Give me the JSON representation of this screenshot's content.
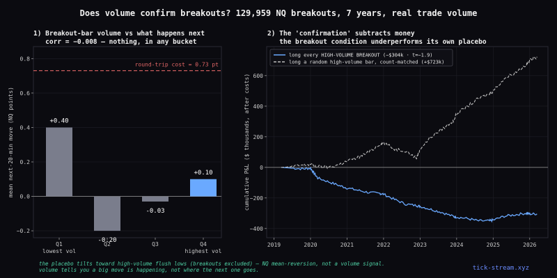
{
  "title": "Does volume confirm breakouts? 129,959 NQ breakouts, 7 years, real trade volume",
  "footer": {
    "line1": "the placebo tilts toward high-volume flush lows (breakouts excluded) — NQ mean-reversion, not a volume signal.",
    "line2": "volume tells you a big move is happening, not where the next one goes."
  },
  "brand": "tick-stream.xyz",
  "colors": {
    "background": "#0b0b10",
    "bar_gray": "#7a7d8c",
    "bar_blue": "#6aa9ff",
    "line_blue": "#6aa9ff",
    "line_gray": "#bdbdbd",
    "cost_red": "#e06666",
    "footer_green": "#4fd1a5",
    "brand_blue": "#6b8cff"
  },
  "chart_data": [
    {
      "type": "bar",
      "title_line1": "1) Breakout-bar volume vs what happens next",
      "title_line2": "   corr = −0.008 — nothing, in any bucket",
      "categories": [
        "Q1",
        "Q2",
        "Q3",
        "Q4"
      ],
      "category_sublabels": [
        "lowest vol",
        "",
        "",
        "highest vol"
      ],
      "values": [
        0.4,
        -0.2,
        -0.03,
        0.1
      ],
      "value_labels": [
        "+0.40",
        "-0.20",
        "-0.03",
        "+0.10"
      ],
      "highlight_index": 3,
      "ylabel": "mean next-20-min move (NQ points)",
      "xlabel": "",
      "ylim": [
        -0.24,
        0.87
      ],
      "yticks": [
        -0.2,
        0.0,
        0.2,
        0.4,
        0.6,
        0.8
      ],
      "ytick_labels": [
        "−0.2",
        "0.0",
        "0.2",
        "0.4",
        "0.6",
        "0.8"
      ],
      "reference_line": {
        "value": 0.73,
        "label": "round-trip cost = 0.73 pt"
      }
    },
    {
      "type": "line",
      "title_line1": "2) The 'confirmation' subtracts money",
      "title_line2": "   the breakout condition underperforms its own placebo",
      "ylabel": "cumulative P&L ($ thousands, after costs)",
      "xlabel": "",
      "xlim": [
        2018.8,
        2026.5
      ],
      "ylim": [
        -460,
        790
      ],
      "xticks": [
        2019,
        2020,
        2021,
        2022,
        2023,
        2024,
        2025,
        2026
      ],
      "xtick_labels": [
        "2019",
        "2020",
        "2021",
        "2022",
        "2023",
        "2024",
        "2025",
        "2026"
      ],
      "yticks": [
        -400,
        -200,
        0,
        200,
        400,
        600
      ],
      "ytick_labels": [
        "−400",
        "−200",
        "0",
        "200",
        "400",
        "600"
      ],
      "legend_position": "upper-left",
      "series": [
        {
          "name": "long every HIGH-VOLUME BREAKOUT  (−$304k · t=−1.9)",
          "style": "solid",
          "x": [
            2019.2,
            2019.5,
            2019.8,
            2020.0,
            2020.1,
            2020.2,
            2020.5,
            2020.8,
            2021.0,
            2021.3,
            2021.6,
            2021.9,
            2022.0,
            2022.3,
            2022.6,
            2022.9,
            2023.0,
            2023.3,
            2023.6,
            2023.9,
            2024.0,
            2024.3,
            2024.6,
            2024.9,
            2025.0,
            2025.3,
            2025.6,
            2025.9,
            2026.0,
            2026.2
          ],
          "y": [
            0,
            -5,
            -10,
            -5,
            -40,
            -70,
            -95,
            -120,
            -135,
            -150,
            -165,
            -170,
            -175,
            -210,
            -240,
            -250,
            -255,
            -275,
            -295,
            -320,
            -325,
            -335,
            -350,
            -350,
            -345,
            -320,
            -310,
            -300,
            -305,
            -304
          ]
        },
        {
          "name": "long a random high-volume bar, count-matched  (+$723k)",
          "style": "dashed",
          "x": [
            2019.2,
            2019.5,
            2019.8,
            2020.0,
            2020.2,
            2020.5,
            2020.8,
            2021.0,
            2021.3,
            2021.6,
            2021.9,
            2022.0,
            2022.3,
            2022.6,
            2022.9,
            2023.0,
            2023.3,
            2023.6,
            2023.9,
            2024.0,
            2024.3,
            2024.6,
            2024.9,
            2025.0,
            2025.3,
            2025.6,
            2025.9,
            2026.0,
            2026.2
          ],
          "y": [
            0,
            5,
            15,
            20,
            5,
            0,
            20,
            40,
            65,
            100,
            150,
            160,
            120,
            110,
            60,
            120,
            200,
            250,
            300,
            350,
            400,
            450,
            480,
            500,
            580,
            620,
            670,
            700,
            723
          ]
        }
      ]
    }
  ]
}
